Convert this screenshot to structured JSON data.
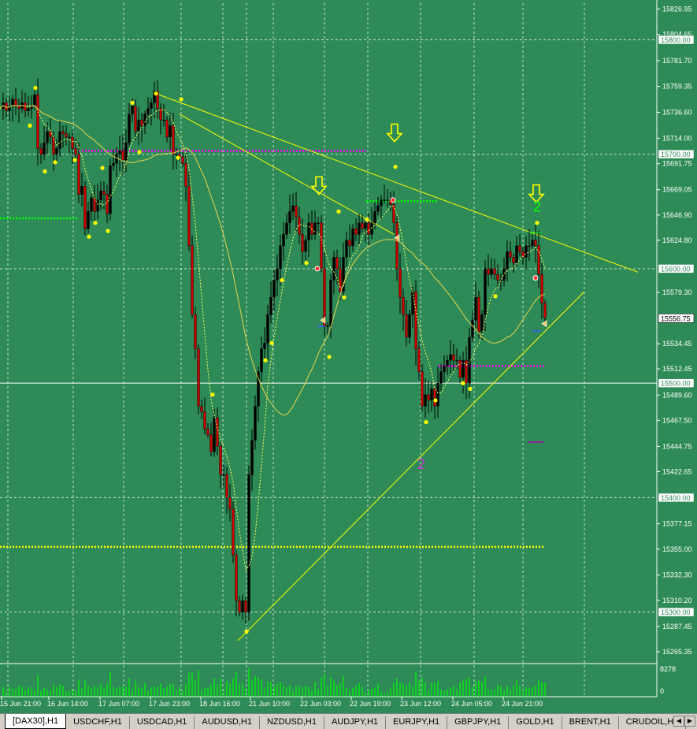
{
  "chart_data": {
    "type": "candlestick",
    "symbol": "DAX30",
    "timeframe": "H1",
    "colors": {
      "background": "#2E8B57",
      "bull_candle": "#000000",
      "bear_candle": "#CC0000",
      "grid": "#FFFFFF",
      "trendline": "#FFFF00",
      "level_green": "#00FF00",
      "level_magenta": "#FF00FF",
      "dot": "#FFFF00",
      "volume": "#00FF00"
    },
    "y_range": [
      15255,
      15832
    ],
    "y_ticks": [
      "15826.95",
      "15804.65",
      "15781.70",
      "15759.35",
      "15736.60",
      "15714.00",
      "15691.75",
      "15669.05",
      "15646.90",
      "15624.80",
      "15579.30",
      "15534.45",
      "15512.45",
      "15489.60",
      "15467.50",
      "15444.75",
      "15422.65",
      "15377.15",
      "15355.00",
      "15332.30",
      "15310.20",
      "15287.45",
      "15265.35"
    ],
    "boxed_levels": [
      {
        "label": "15800.00",
        "value": 15800
      },
      {
        "label": "15700.00",
        "value": 15700
      },
      {
        "label": "15600.00",
        "value": 15600
      },
      {
        "label": "15556.75",
        "value": 15556.75
      },
      {
        "label": "15500.00",
        "value": 15500
      },
      {
        "label": "15400.00",
        "value": 15400
      },
      {
        "label": "15300.00",
        "value": 15300
      }
    ],
    "current_price": "15556.75",
    "x_labels": [
      "15 Jun 21:00",
      "16 Jun 14:00",
      "17 Jun 07:00",
      "17 Jun 23:00",
      "18 Jun 16:00",
      "21 Jun 10:00",
      "22 Jun 03:00",
      "22 Jun 19:00",
      "23 Jun 12:00",
      "24 Jun 05:00",
      "24 Jun 21:00"
    ],
    "volume_max": "8278",
    "volume_min": "0",
    "close_path": [
      [
        0,
        15740
      ],
      [
        4,
        15745
      ],
      [
        8,
        15738
      ],
      [
        12,
        15742
      ],
      [
        16,
        15748
      ],
      [
        20,
        15742
      ],
      [
        24,
        15740
      ],
      [
        28,
        15745
      ],
      [
        32,
        15738
      ],
      [
        36,
        15740
      ],
      [
        40,
        15742
      ],
      [
        44,
        15752
      ],
      [
        48,
        15705
      ],
      [
        52,
        15700
      ],
      [
        56,
        15710
      ],
      [
        60,
        15720
      ],
      [
        64,
        15715
      ],
      [
        68,
        15700
      ],
      [
        72,
        15705
      ],
      [
        76,
        15720
      ],
      [
        80,
        15718
      ],
      [
        84,
        15715
      ],
      [
        88,
        15715
      ],
      [
        92,
        15705
      ],
      [
        96,
        15700
      ],
      [
        100,
        15665
      ],
      [
        104,
        15672
      ],
      [
        108,
        15635
      ],
      [
        112,
        15650
      ],
      [
        116,
        15662
      ],
      [
        120,
        15650
      ],
      [
        124,
        15660
      ],
      [
        128,
        15668
      ],
      [
        132,
        15665
      ],
      [
        136,
        15648
      ],
      [
        140,
        15690
      ],
      [
        144,
        15692
      ],
      [
        148,
        15700
      ],
      [
        152,
        15703
      ],
      [
        156,
        15695
      ],
      [
        160,
        15710
      ],
      [
        164,
        15735
      ],
      [
        168,
        15742
      ],
      [
        172,
        15720
      ],
      [
        176,
        15730
      ],
      [
        180,
        15725
      ],
      [
        184,
        15735
      ],
      [
        188,
        15740
      ],
      [
        192,
        15745
      ],
      [
        196,
        15755
      ],
      [
        200,
        15740
      ],
      [
        204,
        15730
      ],
      [
        208,
        15730
      ],
      [
        212,
        15715
      ],
      [
        216,
        15725
      ],
      [
        220,
        15700
      ],
      [
        224,
        15700
      ],
      [
        228,
        15698
      ],
      [
        232,
        15692
      ],
      [
        236,
        15672
      ],
      [
        240,
        15620
      ],
      [
        244,
        15560
      ],
      [
        248,
        15530
      ],
      [
        252,
        15480
      ],
      [
        256,
        15475
      ],
      [
        260,
        15460
      ],
      [
        264,
        15455
      ],
      [
        268,
        15440
      ],
      [
        272,
        15470
      ],
      [
        276,
        15445
      ],
      [
        280,
        15420
      ],
      [
        284,
        15420
      ],
      [
        288,
        15400
      ],
      [
        292,
        15390
      ],
      [
        296,
        15350
      ],
      [
        300,
        15310
      ],
      [
        304,
        15300
      ],
      [
        308,
        15310
      ],
      [
        312,
        15300
      ],
      [
        316,
        15420
      ],
      [
        320,
        15450
      ],
      [
        324,
        15480
      ],
      [
        328,
        15510
      ],
      [
        332,
        15530
      ],
      [
        336,
        15535
      ],
      [
        340,
        15560
      ],
      [
        344,
        15575
      ],
      [
        348,
        15590
      ],
      [
        352,
        15600
      ],
      [
        356,
        15620
      ],
      [
        360,
        15630
      ],
      [
        364,
        15640
      ],
      [
        368,
        15650
      ],
      [
        372,
        15655
      ],
      [
        376,
        15645
      ],
      [
        380,
        15630
      ],
      [
        384,
        15615
      ],
      [
        388,
        15625
      ],
      [
        392,
        15640
      ],
      [
        396,
        15630
      ],
      [
        400,
        15640
      ],
      [
        404,
        15640
      ],
      [
        408,
        15600
      ],
      [
        412,
        15550
      ],
      [
        416,
        15550
      ],
      [
        420,
        15590
      ],
      [
        424,
        15610
      ],
      [
        428,
        15600
      ],
      [
        432,
        15580
      ],
      [
        436,
        15610
      ],
      [
        440,
        15625
      ],
      [
        444,
        15620
      ],
      [
        448,
        15635
      ],
      [
        452,
        15630
      ],
      [
        456,
        15640
      ],
      [
        460,
        15635
      ],
      [
        464,
        15640
      ],
      [
        468,
        15630
      ],
      [
        472,
        15640
      ],
      [
        476,
        15650
      ],
      [
        480,
        15655
      ],
      [
        484,
        15660
      ],
      [
        488,
        15660
      ],
      [
        492,
        15660
      ],
      [
        496,
        15656
      ],
      [
        500,
        15640
      ],
      [
        504,
        15600
      ],
      [
        508,
        15575
      ],
      [
        512,
        15560
      ],
      [
        516,
        15540
      ],
      [
        520,
        15560
      ],
      [
        524,
        15580
      ],
      [
        528,
        15530
      ],
      [
        532,
        15510
      ],
      [
        536,
        15480
      ],
      [
        540,
        15490
      ],
      [
        544,
        15485
      ],
      [
        548,
        15495
      ],
      [
        552,
        15480
      ],
      [
        556,
        15500
      ],
      [
        560,
        15510
      ],
      [
        564,
        15515
      ],
      [
        568,
        15520
      ],
      [
        572,
        15525
      ],
      [
        576,
        15520
      ],
      [
        580,
        15520
      ],
      [
        584,
        15505
      ],
      [
        588,
        15520
      ],
      [
        592,
        15500
      ],
      [
        596,
        15540
      ],
      [
        600,
        15555
      ],
      [
        604,
        15575
      ],
      [
        608,
        15545
      ],
      [
        612,
        15560
      ],
      [
        616,
        15600
      ],
      [
        620,
        15595
      ],
      [
        624,
        15600
      ],
      [
        628,
        15595
      ],
      [
        632,
        15590
      ],
      [
        636,
        15590
      ],
      [
        640,
        15600
      ],
      [
        644,
        15615
      ],
      [
        648,
        15610
      ],
      [
        652,
        15605
      ],
      [
        656,
        15620
      ],
      [
        660,
        15615
      ],
      [
        664,
        15610
      ],
      [
        668,
        15620
      ],
      [
        672,
        15620
      ],
      [
        676,
        15625
      ],
      [
        680,
        15620
      ],
      [
        684,
        15595
      ],
      [
        688,
        15570
      ],
      [
        692,
        15557
      ]
    ],
    "trendlines": [
      {
        "name": "upper",
        "x": [
          198,
          810
        ],
        "y": [
          15753,
          15597
        ]
      },
      {
        "name": "upper2",
        "x": [
          228,
          500
        ],
        "y": [
          15735,
          15630
        ]
      },
      {
        "name": "lower",
        "x": [
          302,
          742
        ],
        "y": [
          15275,
          15580
        ]
      }
    ],
    "levels": [
      {
        "color": "magenta",
        "x": [
          100,
          465
        ],
        "y": 15703
      },
      {
        "color": "green",
        "x": [
          0,
          100
        ],
        "y": 15644
      },
      {
        "color": "green",
        "x": [
          465,
          555
        ],
        "y": 15659
      },
      {
        "color": "magenta",
        "x": [
          557,
          692
        ],
        "y": 15515
      },
      {
        "color": "yellow",
        "x": [
          0,
          692
        ],
        "y": 15357
      }
    ],
    "arrows": [
      {
        "x": 405,
        "y": 15672
      },
      {
        "x": 501,
        "y": 15718
      },
      {
        "x": 681,
        "y": 15665
      }
    ],
    "labels": [
      {
        "text": "2",
        "x": 682,
        "y": 15650,
        "color": "green"
      },
      {
        "text": "2",
        "x": 535,
        "y": 15425,
        "color": "magenta"
      }
    ]
  },
  "tabs": [
    {
      "label": "[DAX30],H1",
      "active": true
    },
    {
      "label": "USDCHF,H1"
    },
    {
      "label": "USDCAD,H1"
    },
    {
      "label": "AUDUSD,H1"
    },
    {
      "label": "NZDUSD,H1"
    },
    {
      "label": "AUDJPY,H1"
    },
    {
      "label": "EURJPY,H1"
    },
    {
      "label": "GBPJPY,H1"
    },
    {
      "label": "GOLD,H1"
    },
    {
      "label": "BRENT,H1"
    },
    {
      "label": "CRUDOIL,H1"
    }
  ],
  "tab_arrows": {
    "left_icon": "arrow-left-icon",
    "right_icon": "arrow-right-icon"
  }
}
